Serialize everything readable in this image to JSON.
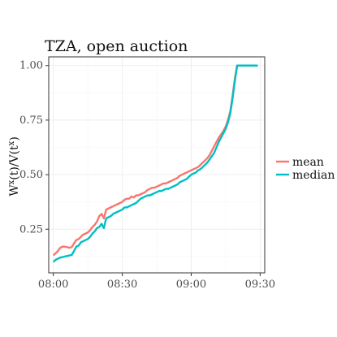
{
  "chart_data": {
    "type": "line",
    "title": "TZA, open auction",
    "xlabel": "",
    "ylabel": "W^x(t)/V(t^x)",
    "x_ticks": [
      "08:00",
      "08:30",
      "09:00",
      "09:30"
    ],
    "x_tick_values_minutes": [
      0,
      30,
      60,
      90
    ],
    "y_ticks": [
      "0.25",
      "0.50",
      "0.75",
      "1.00"
    ],
    "y_tick_values": [
      0.25,
      0.5,
      0.75,
      1.0
    ],
    "xlim_minutes": [
      -2,
      92
    ],
    "ylim": [
      0.05,
      1.04
    ],
    "grid": true,
    "legend_position": "right",
    "series": [
      {
        "name": "mean",
        "color": "#F8766D",
        "x_minutes": [
          0,
          1,
          2,
          3,
          4,
          5,
          6,
          7,
          8,
          9,
          10,
          11,
          12,
          13,
          14,
          15,
          16,
          17,
          18,
          19,
          20,
          21,
          22,
          23,
          24,
          25,
          26,
          27,
          28,
          29,
          30,
          31,
          32,
          33,
          34,
          35,
          36,
          37,
          38,
          39,
          40,
          41,
          42,
          43,
          44,
          45,
          46,
          47,
          48,
          49,
          50,
          51,
          52,
          53,
          54,
          55,
          56,
          57,
          58,
          59,
          60,
          61,
          62,
          63,
          64,
          65,
          66,
          67,
          68,
          69,
          70,
          71,
          72,
          73,
          74,
          75,
          76,
          77,
          78,
          79,
          80,
          81,
          82,
          83,
          84,
          85,
          86,
          87,
          88,
          89
        ],
        "values": [
          0.13,
          0.14,
          0.15,
          0.165,
          0.17,
          0.17,
          0.168,
          0.165,
          0.168,
          0.185,
          0.2,
          0.205,
          0.215,
          0.225,
          0.23,
          0.235,
          0.245,
          0.26,
          0.27,
          0.285,
          0.31,
          0.32,
          0.3,
          0.34,
          0.345,
          0.35,
          0.355,
          0.36,
          0.365,
          0.37,
          0.375,
          0.385,
          0.39,
          0.39,
          0.4,
          0.395,
          0.405,
          0.405,
          0.41,
          0.415,
          0.42,
          0.43,
          0.435,
          0.44,
          0.44,
          0.445,
          0.45,
          0.455,
          0.46,
          0.46,
          0.465,
          0.47,
          0.475,
          0.48,
          0.485,
          0.495,
          0.5,
          0.505,
          0.51,
          0.515,
          0.52,
          0.525,
          0.53,
          0.535,
          0.545,
          0.555,
          0.565,
          0.575,
          0.59,
          0.61,
          0.63,
          0.65,
          0.67,
          0.685,
          0.7,
          0.72,
          0.75,
          0.79,
          0.86,
          0.94,
          1.0,
          1.0,
          1.0,
          1.0,
          1.0,
          1.0,
          1.0,
          1.0,
          1.0,
          1.0
        ]
      },
      {
        "name": "median",
        "color": "#00BFC4",
        "x_minutes": [
          0,
          1,
          2,
          3,
          4,
          5,
          6,
          7,
          8,
          9,
          10,
          11,
          12,
          13,
          14,
          15,
          16,
          17,
          18,
          19,
          20,
          21,
          22,
          23,
          24,
          25,
          26,
          27,
          28,
          29,
          30,
          31,
          32,
          33,
          34,
          35,
          36,
          37,
          38,
          39,
          40,
          41,
          42,
          43,
          44,
          45,
          46,
          47,
          48,
          49,
          50,
          51,
          52,
          53,
          54,
          55,
          56,
          57,
          58,
          59,
          60,
          61,
          62,
          63,
          64,
          65,
          66,
          67,
          68,
          69,
          70,
          71,
          72,
          73,
          74,
          75,
          76,
          77,
          78,
          79,
          80,
          81,
          82,
          83,
          84,
          85,
          86,
          87,
          88,
          89
        ],
        "values": [
          0.1,
          0.11,
          0.115,
          0.12,
          0.122,
          0.125,
          0.127,
          0.13,
          0.132,
          0.15,
          0.17,
          0.175,
          0.19,
          0.195,
          0.2,
          0.205,
          0.215,
          0.23,
          0.24,
          0.255,
          0.26,
          0.275,
          0.255,
          0.3,
          0.305,
          0.31,
          0.32,
          0.325,
          0.33,
          0.335,
          0.34,
          0.35,
          0.35,
          0.355,
          0.36,
          0.365,
          0.37,
          0.38,
          0.39,
          0.395,
          0.4,
          0.405,
          0.405,
          0.41,
          0.415,
          0.42,
          0.425,
          0.425,
          0.43,
          0.435,
          0.435,
          0.44,
          0.445,
          0.45,
          0.455,
          0.465,
          0.47,
          0.475,
          0.48,
          0.49,
          0.5,
          0.505,
          0.51,
          0.52,
          0.525,
          0.535,
          0.545,
          0.555,
          0.57,
          0.585,
          0.6,
          0.625,
          0.65,
          0.67,
          0.69,
          0.71,
          0.74,
          0.78,
          0.85,
          0.93,
          1.0,
          1.0,
          1.0,
          1.0,
          1.0,
          1.0,
          1.0,
          1.0,
          1.0,
          1.0
        ]
      }
    ]
  }
}
